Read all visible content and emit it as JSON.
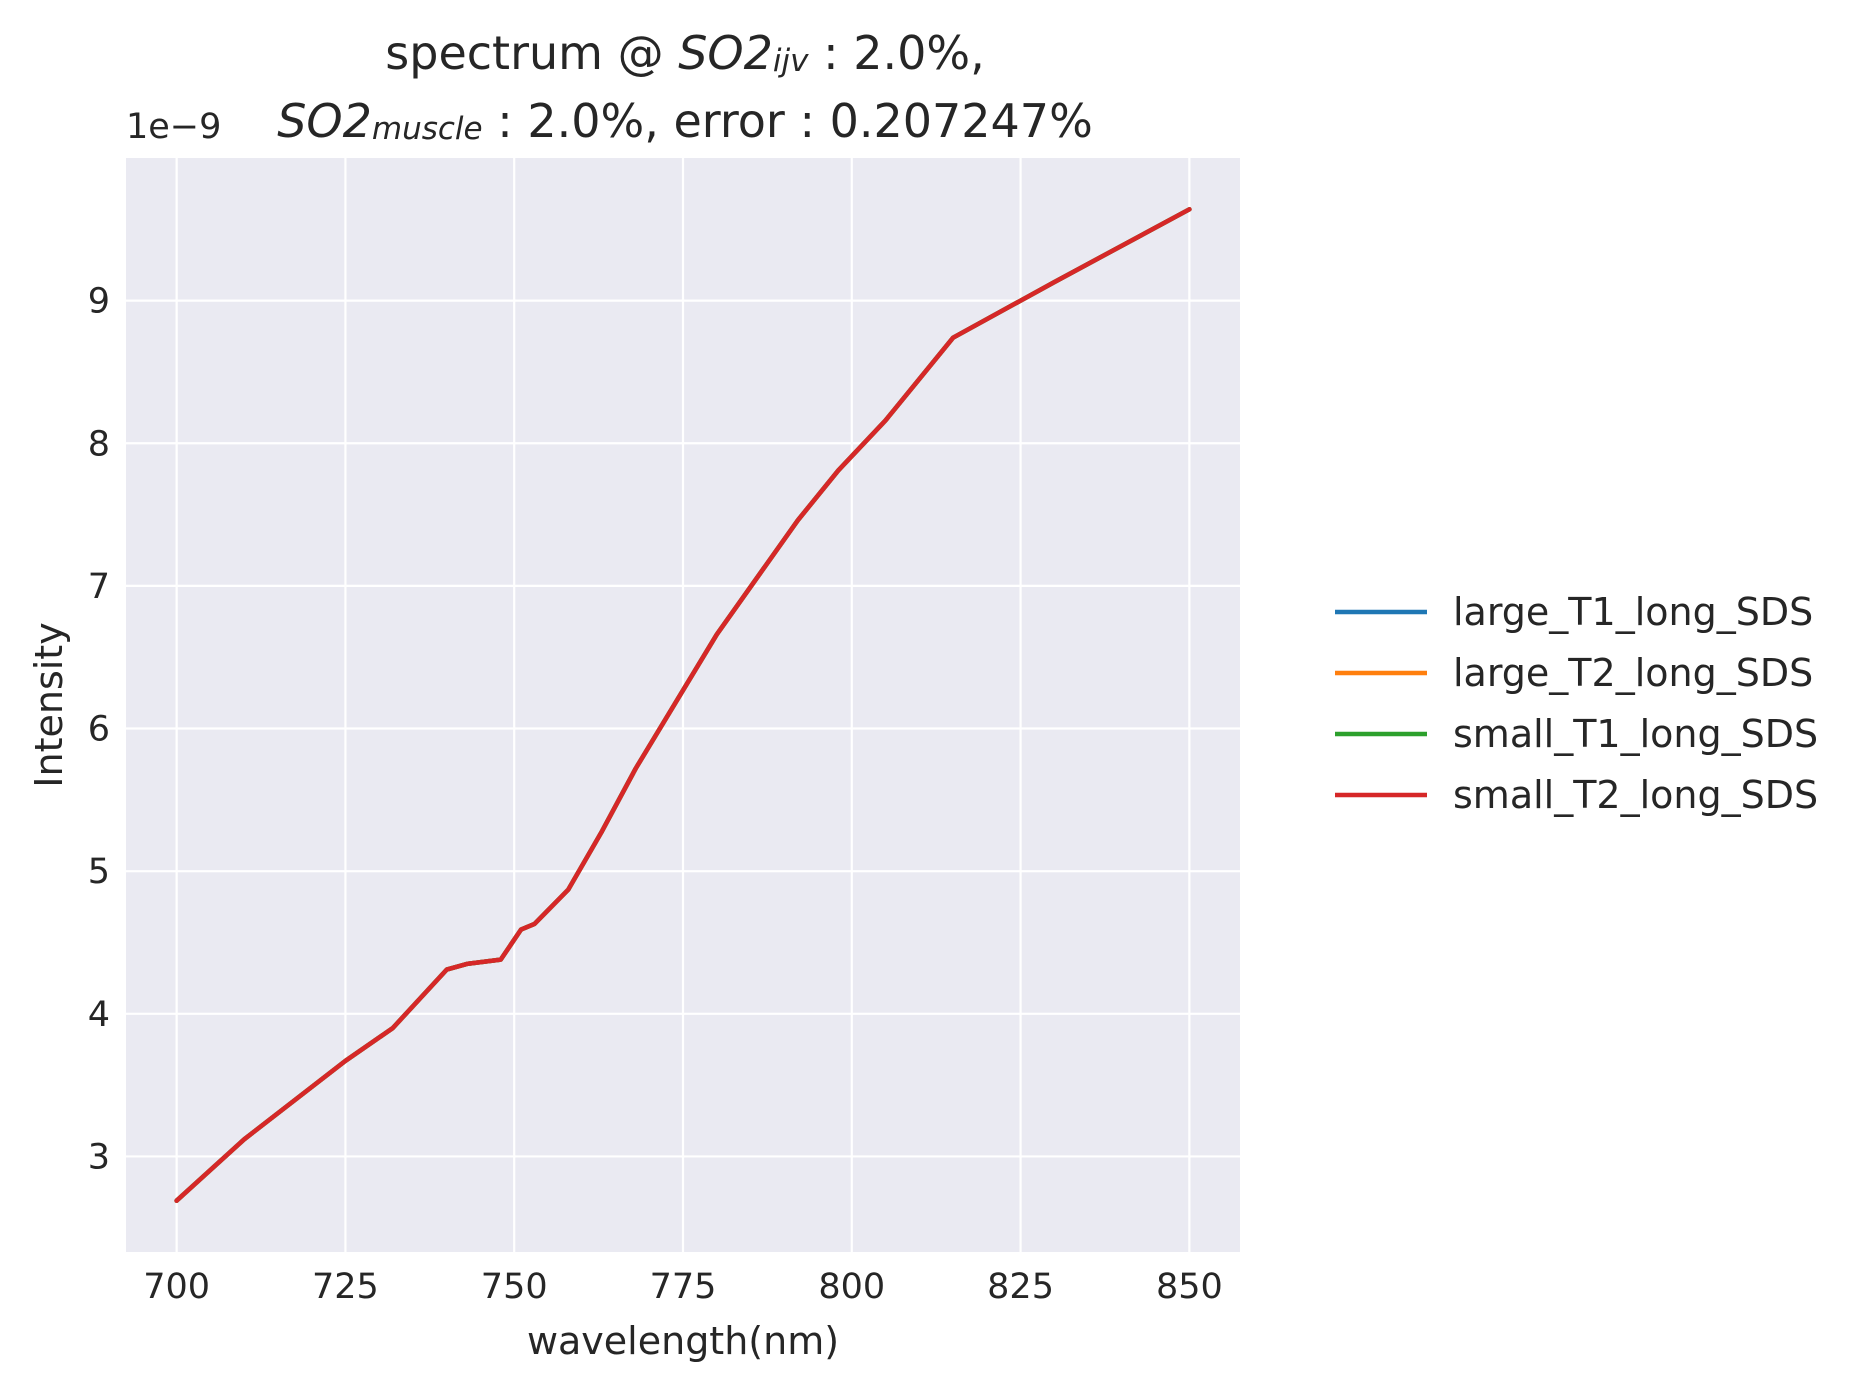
{
  "title": {
    "line1_prefix": "spectrum @ ",
    "line1_math": "SO2",
    "line1_sub": "ijv",
    "line1_suffix": " : 2.0%,",
    "line2_math": "SO2",
    "line2_sub": "muscle",
    "line2_suffix": " : 2.0%, error : 0.207247%"
  },
  "chart_data": {
    "type": "line",
    "xlabel": "wavelength(nm)",
    "ylabel": "Intensity",
    "y_offset_label": "1e−9",
    "xlim": [
      692.5,
      857.5
    ],
    "ylim": [
      2.33,
      10.0
    ],
    "xticks": [
      700,
      725,
      750,
      775,
      800,
      825,
      850
    ],
    "yticks": [
      3,
      4,
      5,
      6,
      7,
      8,
      9
    ],
    "grid": true,
    "legend_position": "outside-right",
    "x": [
      700,
      710,
      725,
      732,
      740,
      743,
      748,
      751,
      753,
      758,
      763,
      768,
      780,
      792,
      798,
      805,
      815,
      830,
      850
    ],
    "series": [
      {
        "name": "large_T1_long_SDS",
        "color": "#1f77b4",
        "values": [
          2.69,
          3.12,
          3.67,
          3.9,
          4.31,
          4.35,
          4.38,
          4.59,
          4.63,
          4.87,
          5.28,
          5.72,
          6.66,
          7.46,
          7.81,
          8.16,
          8.74,
          9.13,
          9.64
        ]
      },
      {
        "name": "large_T2_long_SDS",
        "color": "#ff7f0e",
        "values": [
          2.69,
          3.12,
          3.67,
          3.9,
          4.31,
          4.35,
          4.38,
          4.59,
          4.63,
          4.87,
          5.28,
          5.72,
          6.66,
          7.46,
          7.81,
          8.16,
          8.74,
          9.13,
          9.64
        ]
      },
      {
        "name": "small_T1_long_SDS",
        "color": "#2ca02c",
        "values": [
          2.69,
          3.12,
          3.67,
          3.9,
          4.31,
          4.35,
          4.38,
          4.59,
          4.63,
          4.87,
          5.28,
          5.72,
          6.66,
          7.46,
          7.81,
          8.16,
          8.74,
          9.13,
          9.64
        ]
      },
      {
        "name": "small_T2_long_SDS",
        "color": "#d62728",
        "values": [
          2.69,
          3.12,
          3.67,
          3.9,
          4.31,
          4.35,
          4.38,
          4.59,
          4.63,
          4.87,
          5.28,
          5.72,
          6.66,
          7.46,
          7.81,
          8.16,
          8.74,
          9.13,
          9.64
        ]
      }
    ]
  },
  "colors": {
    "plot_background": "#eaeaf2",
    "grid": "#ffffff"
  }
}
